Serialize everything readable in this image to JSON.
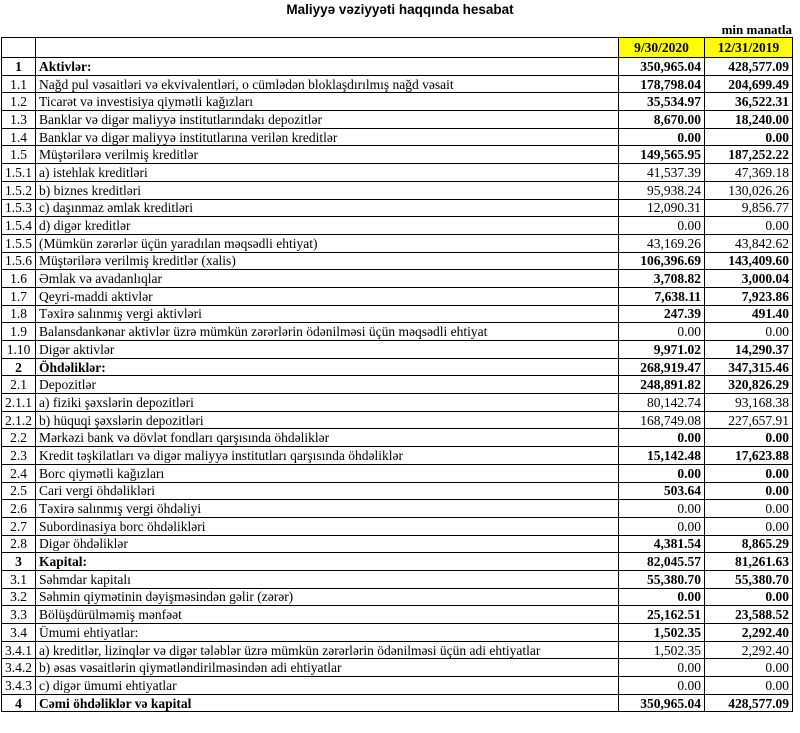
{
  "title": "Maliyyə vəziyyəti haqqında hesabat",
  "unit": "min manatla",
  "columns": [
    "9/30/2020",
    "12/31/2019"
  ],
  "header_color": "#ffff00",
  "rows": [
    {
      "no": "1",
      "label": "Aktivlər:",
      "v1": "350,965.04",
      "v2": "428,577.09",
      "bold_label": true,
      "bold_values": true
    },
    {
      "no": "1.1",
      "label": "Nağd pul vəsaitləri və  ekvivalentləri, o cümlədən bloklaşdırılmış nağd vəsait",
      "v1": "178,798.04",
      "v2": "204,699.49",
      "bold_values": true
    },
    {
      "no": "1.2",
      "label": "Ticarət və investisiya qiymətli kağızları",
      "v1": "35,534.97",
      "v2": "36,522.31",
      "bold_values": true
    },
    {
      "no": "1.3",
      "label": "Banklar və digər maliyyə institutlarındakı depozitlər",
      "v1": "8,670.00",
      "v2": "18,240.00",
      "bold_values": true
    },
    {
      "no": "1.4",
      "label": "Banklar və digər maliyyə institutlarına verilən kreditlər",
      "v1": "0.00",
      "v2": "0.00",
      "bold_values": true
    },
    {
      "no": "1.5",
      "label": "Müştərilərə verilmiş kreditlər",
      "v1": "149,565.95",
      "v2": "187,252.22",
      "bold_values": true
    },
    {
      "no": "1.5.1",
      "label": "a) istehlak kreditləri",
      "v1": "41,537.39",
      "v2": "47,369.18"
    },
    {
      "no": "1.5.2",
      "label": "b) biznes kreditləri",
      "v1": "95,938.24",
      "v2": "130,026.26"
    },
    {
      "no": "1.5.3",
      "label": "c) daşınmaz əmlak kreditləri",
      "v1": "12,090.31",
      "v2": "9,856.77"
    },
    {
      "no": "1.5.4",
      "label": "d) digər kreditlər",
      "v1": "0.00",
      "v2": "0.00"
    },
    {
      "no": "1.5.5",
      "label": "(Mümkün zərərlər üçün yaradılan məqsədli ehtiyat)",
      "v1": "43,169.26",
      "v2": "43,842.62"
    },
    {
      "no": "1.5.6",
      "label": "Müştərilərə verilmiş kreditlər (xalis)",
      "v1": "106,396.69",
      "v2": "143,409.60",
      "bold_values": true
    },
    {
      "no": "1.6",
      "label": "Əmlak və avadanlıqlar",
      "v1": "3,708.82",
      "v2": "3,000.04",
      "bold_values": true
    },
    {
      "no": "1.7",
      "label": "Qeyri-maddi aktivlər",
      "v1": "7,638.11",
      "v2": "7,923.86",
      "bold_values": true
    },
    {
      "no": "1.8",
      "label": "Təxirə salınmış vergi aktivləri",
      "v1": "247.39",
      "v2": "491.40",
      "bold_values": true
    },
    {
      "no": "1.9",
      "label": "Balansdankənar aktivlər üzrə mümkün zərərlərin ödənilməsi üçün məqsədli ehtiyat",
      "v1": "0.00",
      "v2": "0.00"
    },
    {
      "no": "1.10",
      "label": "Digər aktivlər",
      "v1": "9,971.02",
      "v2": "14,290.37",
      "bold_values": true
    },
    {
      "no": "2",
      "label": "Öhdəliklər:",
      "v1": "268,919.47",
      "v2": "347,315.46",
      "bold_label": true,
      "bold_values": true
    },
    {
      "no": "2.1",
      "label": "Depozitlər",
      "v1": "248,891.82",
      "v2": "320,826.29",
      "bold_values": true
    },
    {
      "no": "2.1.1",
      "label": "a) fiziki şəxslərin depozitləri",
      "v1": "80,142.74",
      "v2": "93,168.38"
    },
    {
      "no": "2.1.2",
      "label": "b) hüquqi şəxslərin depozitləri",
      "v1": "168,749.08",
      "v2": "227,657.91"
    },
    {
      "no": "2.2",
      "label": "Mərkəzi bank və dövlət fondları qarşısında öhdəliklər",
      "v1": "0.00",
      "v2": "0.00",
      "bold_values": true
    },
    {
      "no": "2.3",
      "label": "Kredit təşkilatları və digər maliyyə institutları qarşısında öhdəliklər",
      "v1": "15,142.48",
      "v2": "17,623.88",
      "bold_values": true
    },
    {
      "no": "2.4",
      "label": "Borc qiymətli kağızları",
      "v1": "0.00",
      "v2": "0.00",
      "bold_values": true
    },
    {
      "no": "2.5",
      "label": "Cari vergi öhdəlikləri",
      "v1": "503.64",
      "v2": "0.00",
      "bold_values": true
    },
    {
      "no": "2.6",
      "label": "Təxirə salınmış vergi öhdəliyi",
      "v1": "0.00",
      "v2": "0.00"
    },
    {
      "no": "2.7",
      "label": "Subordinasiya borc öhdəlikləri",
      "v1": "0.00",
      "v2": "0.00"
    },
    {
      "no": "2.8",
      "label": "Digər öhdəliklər",
      "v1": "4,381.54",
      "v2": "8,865.29",
      "bold_values": true
    },
    {
      "no": "3",
      "label": "Kapital:",
      "v1": "82,045.57",
      "v2": "81,261.63",
      "bold_label": true,
      "bold_values": true
    },
    {
      "no": "3.1",
      "label": "Səhmdar kapitalı",
      "v1": "55,380.70",
      "v2": "55,380.70",
      "bold_values": true
    },
    {
      "no": "3.2",
      "label": "Səhmin qiymətinin dəyişməsindən gəlir (zərər)",
      "v1": "0.00",
      "v2": "0.00",
      "bold_values": true
    },
    {
      "no": "3.3",
      "label": "Bölüşdürülməmiş mənfəət",
      "v1": "25,162.51",
      "v2": "23,588.52",
      "bold_values": true
    },
    {
      "no": "3.4",
      "label": "Ümumi ehtiyatlar:",
      "v1": "1,502.35",
      "v2": "2,292.40",
      "bold_values": true
    },
    {
      "no": "3.4.1",
      "label": "a) kreditlər, lizinqlər və digər tələblər üzrə mümkün zərərlərin ödənilməsi üçün adi ehtiyatlar",
      "v1": "1,502.35",
      "v2": "2,292.40"
    },
    {
      "no": "3.4.2",
      "label": "b) əsas vəsaitlərin qiymətləndirilməsindən adi ehtiyatlar",
      "v1": "0.00",
      "v2": "0.00"
    },
    {
      "no": "3.4.3",
      "label": "c) digər ümumi ehtiyatlar",
      "v1": "0.00",
      "v2": "0.00"
    },
    {
      "no": "4",
      "label": "Cəmi öhdəliklər və kapital",
      "v1": "350,965.04",
      "v2": "428,577.09",
      "bold_label": true,
      "bold_values": true
    }
  ]
}
